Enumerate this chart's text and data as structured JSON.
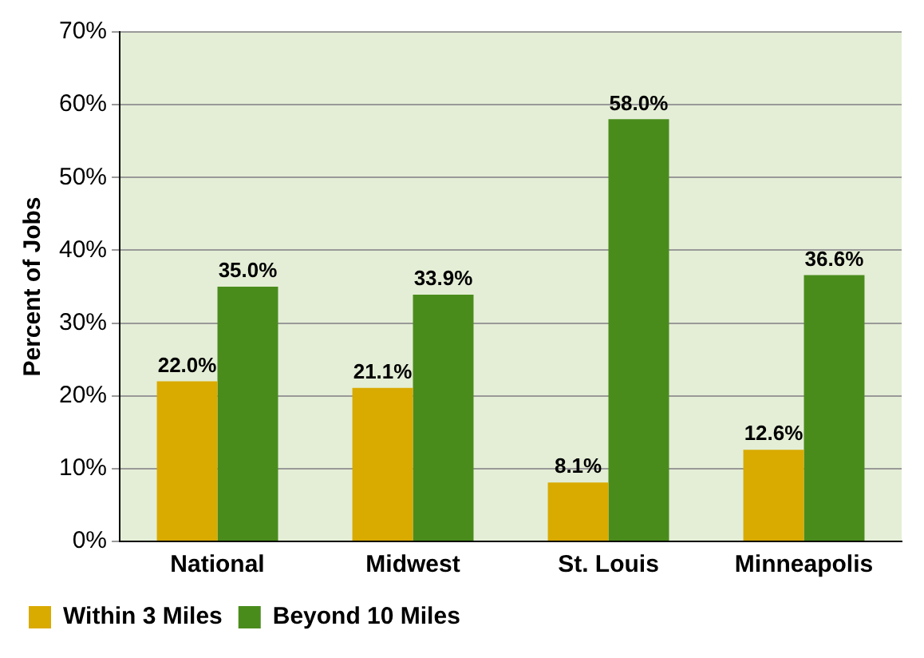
{
  "chart_data": {
    "type": "bar",
    "ylabel": "Percent of Jobs",
    "categories": [
      "National",
      "Midwest",
      "St. Louis",
      "Minneapolis"
    ],
    "series": [
      {
        "name": "Within 3 Miles",
        "color": "#d9aa00",
        "values": [
          22.0,
          21.1,
          8.1,
          12.6
        ],
        "value_labels": [
          "22.0%",
          "21.1%",
          "8.1%",
          "12.6%"
        ]
      },
      {
        "name": "Beyond 10 Miles",
        "color": "#4a8c1c",
        "values": [
          35.0,
          33.9,
          58.0,
          36.6
        ],
        "value_labels": [
          "35.0%",
          "33.9%",
          "58.0%",
          "36.6%"
        ]
      }
    ],
    "ylim": [
      0,
      70
    ],
    "yticks": [
      {
        "value": 0,
        "label": "0%"
      },
      {
        "value": 10,
        "label": "10%"
      },
      {
        "value": 20,
        "label": "20%"
      },
      {
        "value": 30,
        "label": "30%"
      },
      {
        "value": 40,
        "label": "40%"
      },
      {
        "value": 50,
        "label": "50%"
      },
      {
        "value": 60,
        "label": "60%"
      },
      {
        "value": 70,
        "label": "70%"
      }
    ],
    "grid": "y",
    "legend": "bottom left"
  }
}
